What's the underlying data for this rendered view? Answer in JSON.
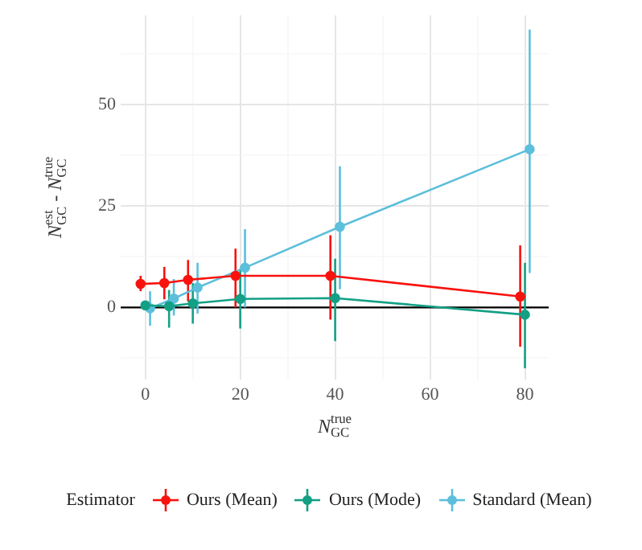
{
  "chart_data": {
    "type": "line",
    "xlabel": "N$_{GC}$$^{true}$",
    "ylabel": "N$_{GC}$$^{est}$ - N$_{GC}$$^{true}$",
    "legend_title": "Estimator",
    "series": [
      {
        "name": "Ours (Mean)",
        "color": "#f8120e",
        "x": [
          -1,
          4,
          9,
          19,
          39,
          79
        ],
        "values": [
          5.8,
          6,
          6.8,
          7.8,
          7.8,
          2.7
        ],
        "errors": [
          [
            4,
            7.8
          ],
          [
            2,
            10
          ],
          [
            1.5,
            11.7
          ],
          [
            0,
            14.5
          ],
          [
            -3,
            17.8
          ],
          [
            -9.7,
            15.3
          ]
        ]
      },
      {
        "name": "Ours (Mode)",
        "color": "#13a085",
        "x": [
          0,
          5,
          10,
          20,
          40,
          80
        ],
        "values": [
          0.5,
          0.3,
          1,
          2.1,
          2.3,
          -1.8
        ],
        "errors": [
          [
            -0.5,
            1.5
          ],
          [
            -5,
            4.3
          ],
          [
            -4,
            6
          ],
          [
            -5.2,
            9.5
          ],
          [
            -8.3,
            12
          ],
          [
            -15,
            11
          ]
        ]
      },
      {
        "name": "Standard (Mean)",
        "color": "#5cbfdb",
        "x": [
          1,
          6,
          11,
          21,
          41,
          81
        ],
        "values": [
          -0.2,
          2.2,
          4.9,
          9.8,
          19.9,
          39
        ],
        "errors": [
          [
            -4.5,
            4
          ],
          [
            -2,
            7
          ],
          [
            -1.5,
            11
          ],
          [
            0,
            19.3
          ],
          [
            4.5,
            34.8
          ],
          [
            8.5,
            68.5
          ]
        ]
      }
    ],
    "xlim": [
      -5.2,
      85
    ],
    "ylim": [
      -17.7,
      72
    ],
    "xticks": [
      0,
      20,
      40,
      60,
      80
    ],
    "yticks": [
      0,
      25,
      50
    ],
    "ref_lines": [
      {
        "axis": "y",
        "value": 0,
        "color": "#000000"
      }
    ],
    "grid": true,
    "legend": "bottom",
    "marker": "circle",
    "line_style": "solid"
  }
}
